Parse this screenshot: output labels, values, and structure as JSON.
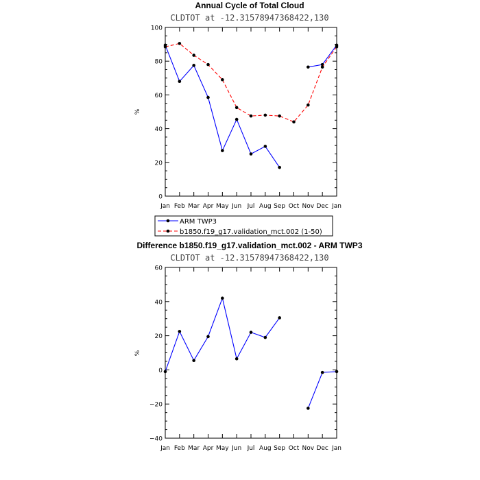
{
  "chart_data": [
    {
      "type": "line",
      "title": "Annual Cycle of Total Cloud",
      "subtitle": "CLDTOT at -12.31578947368422,130",
      "xlabel": "",
      "ylabel": "%",
      "ylim": [
        0,
        100
      ],
      "ytick_values": [
        0,
        20,
        40,
        60,
        80,
        100
      ],
      "yticks": [
        "0",
        "20",
        "40",
        "60",
        "80",
        "100"
      ],
      "categories": [
        "Jan",
        "Feb",
        "Mar",
        "Apr",
        "May",
        "Jun",
        "Jul",
        "Aug",
        "Sep",
        "Oct",
        "Nov",
        "Dec",
        "Jan"
      ],
      "series": [
        {
          "name": "ARM TWP3",
          "color": "#0000ff",
          "dash": "solid",
          "values": [
            89.5,
            68,
            77.5,
            58.5,
            27,
            45.5,
            25,
            29.5,
            17,
            null,
            76.5,
            78,
            89.5
          ]
        },
        {
          "name": "b1850.f19_g17.validation_mct.002 (1-50)",
          "color": "#ff0000",
          "dash": "dashed",
          "values": [
            88.5,
            90.5,
            83.5,
            78,
            69,
            52.5,
            47.5,
            48,
            47.5,
            44,
            54,
            76.5,
            88.5
          ]
        }
      ],
      "legend": [
        "ARM TWP3",
        "b1850.f19_g17.validation_mct.002 (1-50)"
      ]
    },
    {
      "type": "line",
      "title": "Difference b1850.f19_g17.validation_mct.002 - ARM TWP3",
      "subtitle": "CLDTOT at -12.31578947368422,130",
      "xlabel": "",
      "ylabel": "%",
      "ylim": [
        -40,
        60
      ],
      "ytick_values": [
        -40,
        -20,
        0,
        20,
        40,
        60
      ],
      "yticks": [
        "−40",
        "−20",
        "0",
        "20",
        "40",
        "60"
      ],
      "categories": [
        "Jan",
        "Feb",
        "Mar",
        "Apr",
        "May",
        "Jun",
        "Jul",
        "Aug",
        "Sep",
        "Oct",
        "Nov",
        "Dec",
        "Jan"
      ],
      "series": [
        {
          "name": "Difference",
          "color": "#0000ff",
          "dash": "solid",
          "values": [
            -1,
            22.5,
            5.5,
            19.5,
            42,
            6.5,
            22,
            19,
            30.5,
            null,
            -22.5,
            -1.5,
            -1
          ]
        }
      ]
    }
  ]
}
